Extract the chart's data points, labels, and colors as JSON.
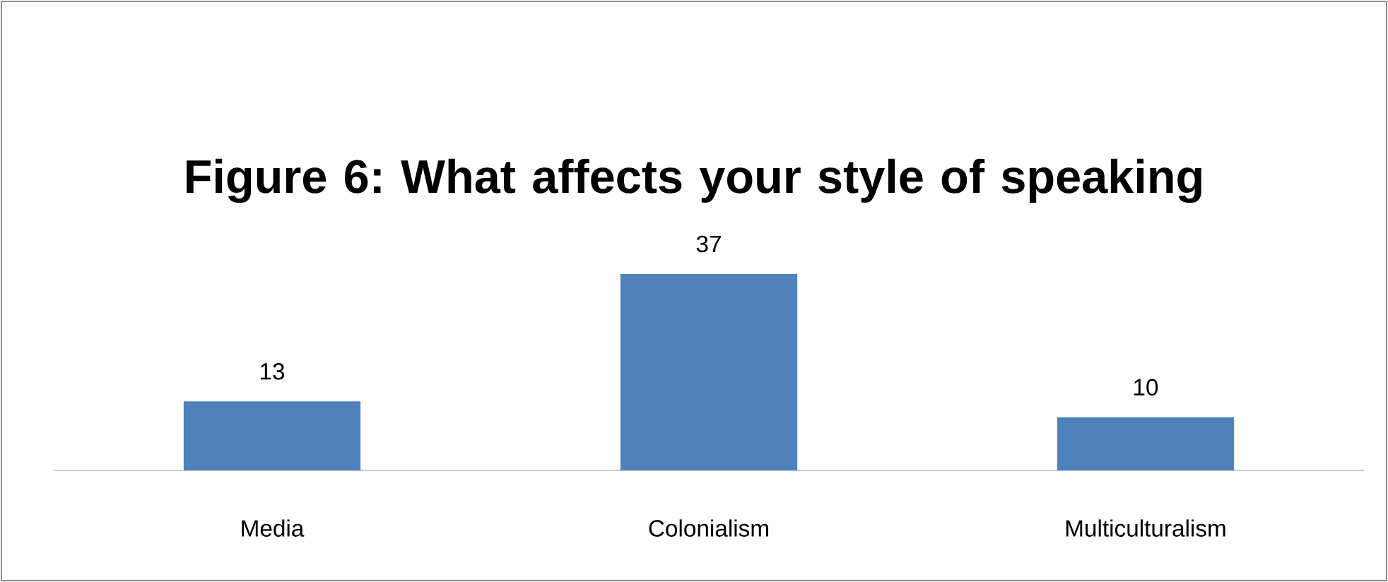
{
  "chart_data": {
    "type": "bar",
    "title": "Figure 6: What affects your style of speaking",
    "categories": [
      "Media",
      "Colonialism",
      "Multiculturalism"
    ],
    "values": [
      13,
      37,
      10
    ],
    "color": "#4f81bd",
    "data_labels": true
  }
}
